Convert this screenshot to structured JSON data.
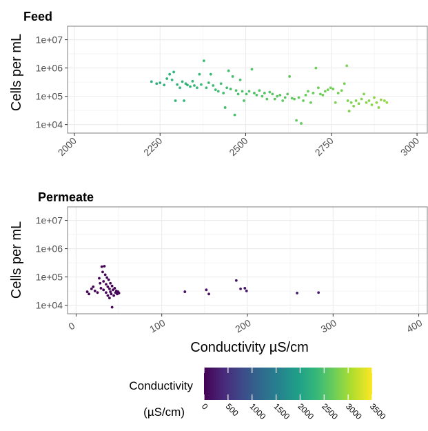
{
  "chart_data": [
    {
      "type": "scatter",
      "title": "Feed",
      "ylabel": "Cells per mL",
      "xlabel": "",
      "xlim": [
        1980,
        3030
      ],
      "x_ticks": [
        2000,
        2250,
        2500,
        2750,
        3000
      ],
      "y_log": true,
      "ylim": [
        5000,
        30000000
      ],
      "y_ticks": [
        10000,
        100000,
        1000000,
        10000000
      ],
      "y_tick_labels": [
        "1e+04",
        "1e+05",
        "1e+06",
        "1e+07"
      ],
      "grid": true,
      "series": [
        {
          "color_by": "conductivity",
          "points": [
            [
              2225,
              330000
            ],
            [
              2240,
              280000
            ],
            [
              2250,
              300000
            ],
            [
              2262,
              250000
            ],
            [
              2270,
              420000
            ],
            [
              2278,
              600000
            ],
            [
              2285,
              380000
            ],
            [
              2290,
              720000
            ],
            [
              2295,
              70000
            ],
            [
              2300,
              260000
            ],
            [
              2308,
              200000
            ],
            [
              2315,
              330000
            ],
            [
              2320,
              70000
            ],
            [
              2325,
              280000
            ],
            [
              2330,
              250000
            ],
            [
              2338,
              220000
            ],
            [
              2345,
              340000
            ],
            [
              2350,
              240000
            ],
            [
              2358,
              200000
            ],
            [
              2365,
              600000
            ],
            [
              2370,
              260000
            ],
            [
              2378,
              1800000
            ],
            [
              2385,
              200000
            ],
            [
              2392,
              300000
            ],
            [
              2398,
              600000
            ],
            [
              2405,
              240000
            ],
            [
              2412,
              170000
            ],
            [
              2420,
              150000
            ],
            [
              2428,
              280000
            ],
            [
              2435,
              130000
            ],
            [
              2440,
              40000
            ],
            [
              2445,
              200000
            ],
            [
              2450,
              800000
            ],
            [
              2456,
              180000
            ],
            [
              2462,
              500000
            ],
            [
              2468,
              22000
            ],
            [
              2472,
              160000
            ],
            [
              2478,
              120000
            ],
            [
              2484,
              380000
            ],
            [
              2490,
              150000
            ],
            [
              2495,
              70000
            ],
            [
              2502,
              120000
            ],
            [
              2510,
              150000
            ],
            [
              2518,
              900000
            ],
            [
              2525,
              130000
            ],
            [
              2532,
              110000
            ],
            [
              2540,
              160000
            ],
            [
              2548,
              100000
            ],
            [
              2555,
              130000
            ],
            [
              2562,
              80000
            ],
            [
              2570,
              140000
            ],
            [
              2578,
              120000
            ],
            [
              2585,
              80000
            ],
            [
              2592,
              100000
            ],
            [
              2600,
              110000
            ],
            [
              2608,
              70000
            ],
            [
              2615,
              90000
            ],
            [
              2622,
              120000
            ],
            [
              2628,
              500000
            ],
            [
              2635,
              85000
            ],
            [
              2642,
              80000
            ],
            [
              2648,
              14000
            ],
            [
              2655,
              90000
            ],
            [
              2662,
              11000
            ],
            [
              2668,
              70000
            ],
            [
              2675,
              110000
            ],
            [
              2682,
              150000
            ],
            [
              2690,
              60000
            ],
            [
              2697,
              130000
            ],
            [
              2705,
              1000000
            ],
            [
              2712,
              200000
            ],
            [
              2718,
              120000
            ],
            [
              2725,
              110000
            ],
            [
              2732,
              150000
            ],
            [
              2740,
              170000
            ],
            [
              2748,
              200000
            ],
            [
              2755,
              180000
            ],
            [
              2762,
              60000
            ],
            [
              2770,
              130000
            ],
            [
              2780,
              160000
            ],
            [
              2788,
              280000
            ],
            [
              2795,
              1200000
            ],
            [
              2798,
              70000
            ],
            [
              2802,
              30000
            ],
            [
              2808,
              60000
            ],
            [
              2815,
              45000
            ],
            [
              2822,
              70000
            ],
            [
              2830,
              55000
            ],
            [
              2838,
              80000
            ],
            [
              2845,
              120000
            ],
            [
              2852,
              60000
            ],
            [
              2860,
              70000
            ],
            [
              2868,
              50000
            ],
            [
              2875,
              90000
            ],
            [
              2882,
              60000
            ],
            [
              2888,
              40000
            ],
            [
              2895,
              75000
            ],
            [
              2905,
              70000
            ],
            [
              2912,
              60000
            ]
          ]
        }
      ]
    },
    {
      "type": "scatter",
      "title": "Permeate",
      "ylabel": "Cells per mL",
      "xlabel": "Conductivity µS/cm",
      "xlim": [
        -10,
        410
      ],
      "x_ticks": [
        0,
        100,
        200,
        300,
        400
      ],
      "y_log": true,
      "ylim": [
        5000,
        30000000
      ],
      "y_ticks": [
        10000,
        100000,
        1000000,
        10000000
      ],
      "y_tick_labels": [
        "1e+04",
        "1e+05",
        "1e+06",
        "1e+07"
      ],
      "grid": true,
      "series": [
        {
          "color_by": "conductivity",
          "points": [
            [
              13,
              30000
            ],
            [
              15,
              25000
            ],
            [
              18,
              38000
            ],
            [
              20,
              45000
            ],
            [
              22,
              32000
            ],
            [
              25,
              28000
            ],
            [
              27,
              90000
            ],
            [
              28,
              60000
            ],
            [
              29,
              40000
            ],
            [
              30,
              230000
            ],
            [
              31,
              150000
            ],
            [
              32,
              70000
            ],
            [
              32,
              35000
            ],
            [
              33,
              240000
            ],
            [
              34,
              120000
            ],
            [
              35,
              55000
            ],
            [
              35,
              28000
            ],
            [
              36,
              95000
            ],
            [
              37,
              45000
            ],
            [
              37,
              22000
            ],
            [
              38,
              80000
            ],
            [
              39,
              38000
            ],
            [
              39,
              18000
            ],
            [
              40,
              60000
            ],
            [
              40,
              30000
            ],
            [
              41,
              25000
            ],
            [
              42,
              8500
            ],
            [
              42,
              48000
            ],
            [
              43,
              35000
            ],
            [
              44,
              22000
            ],
            [
              45,
              40000
            ],
            [
              46,
              28000
            ],
            [
              47,
              32000
            ],
            [
              48,
              25000
            ],
            [
              49,
              30000
            ],
            [
              50,
              27000
            ],
            [
              127,
              30000
            ],
            [
              152,
              35000
            ],
            [
              155,
              25000
            ],
            [
              187,
              75000
            ],
            [
              192,
              38000
            ],
            [
              197,
              40000
            ],
            [
              199,
              32000
            ],
            [
              258,
              27000
            ],
            [
              283,
              28000
            ]
          ]
        }
      ]
    }
  ],
  "legend": {
    "title_line1": "Conductivity",
    "title_line2": "(µS/cm)",
    "min": 0,
    "max": 3500,
    "ticks": [
      0,
      500,
      1000,
      1500,
      2000,
      2500,
      3000,
      3500
    ],
    "placement": "bottom",
    "palette": [
      "#440154",
      "#482878",
      "#3e4989",
      "#31688e",
      "#26828e",
      "#1f9e89",
      "#35b779",
      "#6ece58",
      "#b5de2b",
      "#fde725"
    ]
  }
}
